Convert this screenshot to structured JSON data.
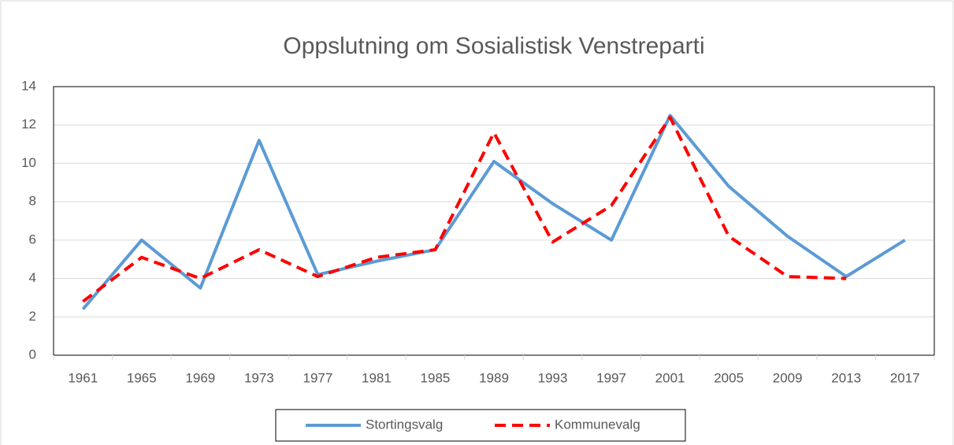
{
  "chart_data": {
    "type": "line",
    "title": "Oppslutning om Sosialistisk Venstreparti",
    "categories": [
      "1961",
      "1965",
      "1969",
      "1973",
      "1977",
      "1981",
      "1985",
      "1989",
      "1993",
      "1997",
      "2001",
      "2005",
      "2009",
      "2013",
      "2017"
    ],
    "series": [
      {
        "name": "Stortingsvalg",
        "color": "#5b9bd5",
        "values": [
          2.4,
          6.0,
          3.5,
          11.2,
          4.2,
          4.9,
          5.5,
          10.1,
          7.9,
          6.0,
          12.5,
          8.8,
          6.2,
          4.1,
          6.0
        ]
      },
      {
        "name": "Kommunevalg",
        "color": "#ff0000",
        "dashed": true,
        "values": [
          2.8,
          5.1,
          4.0,
          5.5,
          4.1,
          5.1,
          5.5,
          11.6,
          5.9,
          7.8,
          12.4,
          6.2,
          4.1,
          4.0,
          null
        ]
      }
    ],
    "ylim": [
      0,
      14
    ],
    "yticks": [
      0,
      2,
      4,
      6,
      8,
      10,
      12,
      14
    ],
    "grid": true,
    "legend": "bottom"
  }
}
